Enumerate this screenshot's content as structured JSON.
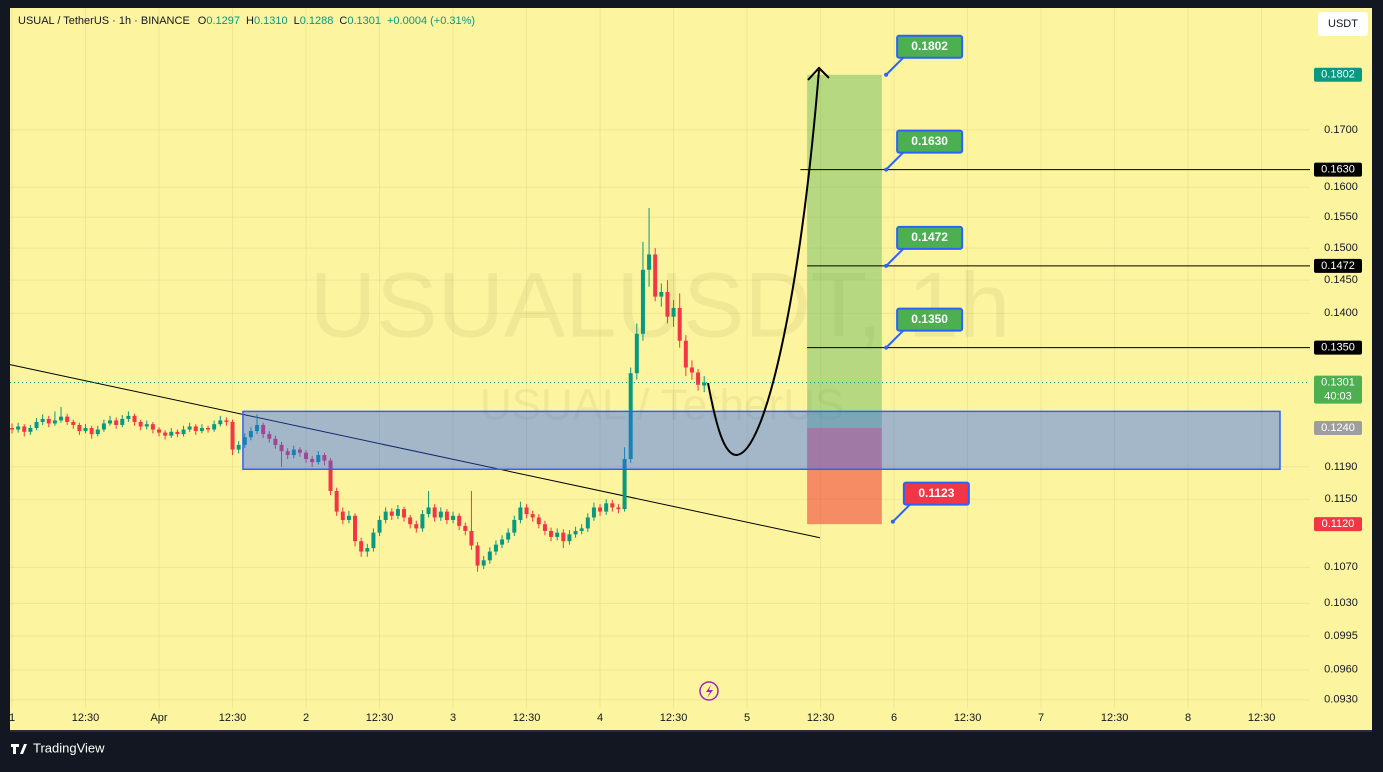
{
  "chart_data": {
    "type": "candlestick",
    "title": "USUAL / TetherUS · 1h · BINANCE",
    "ohlc_header": [
      {
        "key": "O",
        "text": "0.1297"
      },
      {
        "key": "H",
        "text": "0.1310"
      },
      {
        "key": "L",
        "text": "0.1288"
      },
      {
        "key": "C",
        "text": "0.1301"
      }
    ],
    "change": "+0.0004 (+0.31%)",
    "currency": "USDT",
    "watermark": [
      "USUALUSDT, 1h",
      "USUAL / TetherUS"
    ],
    "brand": "TradingView",
    "log_scale": true,
    "grid": true,
    "up_color": "#089981",
    "down_color": "#f23645",
    "ylim": [
      0.1934,
      0.0922
    ],
    "xlim": [
      -0.33,
      211.9
    ],
    "yticks": [
      {
        "value": 0.17,
        "label": "0.1700"
      },
      {
        "value": 0.16,
        "label": "0.1600"
      },
      {
        "value": 0.155,
        "label": "0.1550"
      },
      {
        "value": 0.15,
        "label": "0.1500"
      },
      {
        "value": 0.145,
        "label": "0.1450"
      },
      {
        "value": 0.14,
        "label": "0.1400"
      },
      {
        "value": 0.119,
        "label": "0.1190"
      },
      {
        "value": 0.115,
        "label": "0.1150"
      },
      {
        "value": 0.107,
        "label": "0.1070"
      },
      {
        "value": 0.103,
        "label": "0.1030"
      },
      {
        "value": 0.0995,
        "label": "0.0995"
      },
      {
        "value": 0.096,
        "label": "0.0960"
      },
      {
        "value": 0.093,
        "label": "0.0930"
      }
    ],
    "xticks": [
      {
        "value": 0,
        "label": "1"
      },
      {
        "value": 12,
        "label": "12:30"
      },
      {
        "value": 24,
        "label": "Apr"
      },
      {
        "value": 36,
        "label": "12:30"
      },
      {
        "value": 48,
        "label": "2"
      },
      {
        "value": 60,
        "label": "12:30"
      },
      {
        "value": 72,
        "label": "3"
      },
      {
        "value": 84,
        "label": "12:30"
      },
      {
        "value": 96,
        "label": "4"
      },
      {
        "value": 108,
        "label": "12:30"
      },
      {
        "value": 120,
        "label": "5"
      },
      {
        "value": 132,
        "label": "12:30"
      },
      {
        "value": 144,
        "label": "6"
      },
      {
        "value": 156,
        "label": "12:30"
      },
      {
        "value": 168,
        "label": "7"
      },
      {
        "value": 180,
        "label": "12:30"
      },
      {
        "value": 192,
        "label": "8"
      },
      {
        "value": 204,
        "label": "12:30"
      }
    ],
    "x": [
      0,
      1,
      2,
      3,
      4,
      5,
      6,
      7,
      8,
      9,
      10,
      11,
      12,
      13,
      14,
      15,
      16,
      17,
      18,
      19,
      20,
      21,
      22,
      23,
      24,
      25,
      26,
      27,
      28,
      29,
      30,
      31,
      32,
      33,
      34,
      35,
      36,
      37,
      38,
      39,
      40,
      41,
      42,
      43,
      44,
      45,
      46,
      47,
      48,
      49,
      50,
      51,
      52,
      53,
      54,
      55,
      56,
      57,
      58,
      59,
      60,
      61,
      62,
      63,
      64,
      65,
      66,
      67,
      68,
      69,
      70,
      71,
      72,
      73,
      74,
      75,
      76,
      77,
      78,
      79,
      80,
      81,
      82,
      83,
      84,
      85,
      86,
      87,
      88,
      89,
      90,
      91,
      92,
      93,
      94,
      95,
      96,
      97,
      98,
      99,
      100,
      101,
      102,
      103,
      104,
      105,
      106,
      107,
      108,
      109,
      110,
      111,
      112,
      113
    ],
    "ohlc": [
      [
        0.124,
        0.1246,
        0.1233,
        0.1238
      ],
      [
        0.1238,
        0.1247,
        0.1234,
        0.1242
      ],
      [
        0.1242,
        0.1245,
        0.1229,
        0.1235
      ],
      [
        0.1235,
        0.1244,
        0.1231,
        0.124
      ],
      [
        0.124,
        0.1253,
        0.1237,
        0.1248
      ],
      [
        0.1248,
        0.1258,
        0.1244,
        0.1252
      ],
      [
        0.1252,
        0.1256,
        0.1241,
        0.1246
      ],
      [
        0.1246,
        0.1262,
        0.1243,
        0.125
      ],
      [
        0.125,
        0.1268,
        0.1247,
        0.1255
      ],
      [
        0.1255,
        0.1259,
        0.1244,
        0.1248
      ],
      [
        0.1248,
        0.1251,
        0.1239,
        0.1244
      ],
      [
        0.1244,
        0.1247,
        0.1231,
        0.1236
      ],
      [
        0.1236,
        0.1245,
        0.1233,
        0.124
      ],
      [
        0.124,
        0.1243,
        0.1226,
        0.1232
      ],
      [
        0.1232,
        0.1243,
        0.1229,
        0.1238
      ],
      [
        0.1238,
        0.1251,
        0.1235,
        0.1246
      ],
      [
        0.1246,
        0.1256,
        0.1243,
        0.125
      ],
      [
        0.125,
        0.1254,
        0.1239,
        0.1244
      ],
      [
        0.1244,
        0.1257,
        0.1241,
        0.1252
      ],
      [
        0.1252,
        0.1262,
        0.1248,
        0.1256
      ],
      [
        0.1256,
        0.1259,
        0.1243,
        0.1248
      ],
      [
        0.1248,
        0.1251,
        0.1237,
        0.1242
      ],
      [
        0.1242,
        0.125,
        0.1238,
        0.1245
      ],
      [
        0.1245,
        0.1248,
        0.1233,
        0.1238
      ],
      [
        0.1238,
        0.1241,
        0.1229,
        0.1234
      ],
      [
        0.1234,
        0.1237,
        0.1225,
        0.123
      ],
      [
        0.123,
        0.124,
        0.1227,
        0.1235
      ],
      [
        0.1235,
        0.1238,
        0.1228,
        0.1232
      ],
      [
        0.1232,
        0.1243,
        0.1229,
        0.1238
      ],
      [
        0.1238,
        0.1247,
        0.1235,
        0.1242
      ],
      [
        0.1242,
        0.1245,
        0.1231,
        0.1236
      ],
      [
        0.1236,
        0.1245,
        0.1233,
        0.124
      ],
      [
        0.124,
        0.1243,
        0.1234,
        0.1238
      ],
      [
        0.1238,
        0.125,
        0.1235,
        0.1245
      ],
      [
        0.1245,
        0.1256,
        0.1242,
        0.125
      ],
      [
        0.125,
        0.1254,
        0.1243,
        0.1248
      ],
      [
        0.1248,
        0.1251,
        0.1205,
        0.1212
      ],
      [
        0.1212,
        0.1223,
        0.1207,
        0.1218
      ],
      [
        0.1218,
        0.1233,
        0.1214,
        0.1228
      ],
      [
        0.1228,
        0.1241,
        0.1224,
        0.1236
      ],
      [
        0.1236,
        0.1258,
        0.1232,
        0.1244
      ],
      [
        0.1244,
        0.1247,
        0.1227,
        0.1232
      ],
      [
        0.1232,
        0.1236,
        0.1221,
        0.1226
      ],
      [
        0.1226,
        0.123,
        0.1213,
        0.1218
      ],
      [
        0.1218,
        0.1222,
        0.119,
        0.121
      ],
      [
        0.121,
        0.1214,
        0.12,
        0.1205
      ],
      [
        0.1205,
        0.1217,
        0.1201,
        0.1212
      ],
      [
        0.1212,
        0.1215,
        0.1203,
        0.1208
      ],
      [
        0.1208,
        0.1211,
        0.1195,
        0.12
      ],
      [
        0.12,
        0.1204,
        0.119,
        0.1196
      ],
      [
        0.1196,
        0.121,
        0.1193,
        0.1205
      ],
      [
        0.1205,
        0.1208,
        0.1192,
        0.1198
      ],
      [
        0.1198,
        0.1201,
        0.1155,
        0.116
      ],
      [
        0.116,
        0.1164,
        0.113,
        0.1135
      ],
      [
        0.1135,
        0.114,
        0.112,
        0.1125
      ],
      [
        0.1125,
        0.1136,
        0.1121,
        0.113
      ],
      [
        0.113,
        0.1133,
        0.1094,
        0.11
      ],
      [
        0.11,
        0.1104,
        0.1082,
        0.1088
      ],
      [
        0.1088,
        0.1097,
        0.1082,
        0.1092
      ],
      [
        0.1092,
        0.1115,
        0.1088,
        0.111
      ],
      [
        0.111,
        0.113,
        0.1106,
        0.1125
      ],
      [
        0.1125,
        0.114,
        0.1121,
        0.1135
      ],
      [
        0.1135,
        0.1139,
        0.1125,
        0.113
      ],
      [
        0.113,
        0.1143,
        0.1126,
        0.1138
      ],
      [
        0.1138,
        0.1141,
        0.1123,
        0.1128
      ],
      [
        0.1128,
        0.1131,
        0.1115,
        0.112
      ],
      [
        0.112,
        0.1124,
        0.111,
        0.1115
      ],
      [
        0.1115,
        0.1137,
        0.1111,
        0.1132
      ],
      [
        0.1132,
        0.116,
        0.1128,
        0.114
      ],
      [
        0.114,
        0.1144,
        0.1123,
        0.1128
      ],
      [
        0.1128,
        0.114,
        0.1124,
        0.1135
      ],
      [
        0.1135,
        0.1138,
        0.112,
        0.1125
      ],
      [
        0.1125,
        0.1135,
        0.1121,
        0.113
      ],
      [
        0.113,
        0.1133,
        0.1113,
        0.1118
      ],
      [
        0.1118,
        0.1122,
        0.1107,
        0.1112
      ],
      [
        0.1112,
        0.116,
        0.109,
        0.1095
      ],
      [
        0.1095,
        0.1099,
        0.1065,
        0.1072
      ],
      [
        0.1072,
        0.1083,
        0.1068,
        0.1078
      ],
      [
        0.1078,
        0.1093,
        0.1074,
        0.1088
      ],
      [
        0.1088,
        0.1101,
        0.1084,
        0.1096
      ],
      [
        0.1096,
        0.1107,
        0.1092,
        0.1102
      ],
      [
        0.1102,
        0.1115,
        0.1098,
        0.111
      ],
      [
        0.111,
        0.113,
        0.1106,
        0.1125
      ],
      [
        0.1125,
        0.1147,
        0.1121,
        0.114
      ],
      [
        0.114,
        0.1144,
        0.1127,
        0.1132
      ],
      [
        0.1132,
        0.1136,
        0.1123,
        0.1128
      ],
      [
        0.1128,
        0.1132,
        0.1115,
        0.112
      ],
      [
        0.112,
        0.1124,
        0.1107,
        0.1112
      ],
      [
        0.1112,
        0.1116,
        0.11,
        0.1105
      ],
      [
        0.1105,
        0.1115,
        0.1101,
        0.111
      ],
      [
        0.111,
        0.1114,
        0.1092,
        0.11
      ],
      [
        0.11,
        0.1113,
        0.1096,
        0.1108
      ],
      [
        0.1108,
        0.1117,
        0.1104,
        0.1112
      ],
      [
        0.1112,
        0.112,
        0.1108,
        0.1115
      ],
      [
        0.1115,
        0.1133,
        0.1111,
        0.1128
      ],
      [
        0.1128,
        0.1146,
        0.1124,
        0.114
      ],
      [
        0.114,
        0.1144,
        0.113,
        0.1135
      ],
      [
        0.1135,
        0.115,
        0.1131,
        0.1145
      ],
      [
        0.1145,
        0.1149,
        0.1135,
        0.114
      ],
      [
        0.114,
        0.1144,
        0.1133,
        0.1138
      ],
      [
        0.1138,
        0.1215,
        0.1135,
        0.12
      ],
      [
        0.12,
        0.1322,
        0.1195,
        0.1314
      ],
      [
        0.1314,
        0.1385,
        0.1305,
        0.137
      ],
      [
        0.137,
        0.151,
        0.136,
        0.1466
      ],
      [
        0.1466,
        0.1565,
        0.144,
        0.149
      ],
      [
        0.149,
        0.15,
        0.1418,
        0.1425
      ],
      [
        0.1425,
        0.1445,
        0.141,
        0.1432
      ],
      [
        0.1432,
        0.145,
        0.1385,
        0.1395
      ],
      [
        0.1395,
        0.142,
        0.138,
        0.1408
      ],
      [
        0.1408,
        0.143,
        0.135,
        0.136
      ],
      [
        0.136,
        0.1368,
        0.131,
        0.1322
      ],
      [
        0.1322,
        0.1332,
        0.1305,
        0.1315
      ],
      [
        0.1315,
        0.132,
        0.129,
        0.1298
      ],
      [
        0.1297,
        0.131,
        0.1288,
        0.1301
      ]
    ],
    "price_tags": [
      {
        "value": 0.1802,
        "label": "0.1802",
        "color": "#089981"
      },
      {
        "value": 0.163,
        "label": "0.1630",
        "color": "#000000"
      },
      {
        "value": 0.1472,
        "label": "0.1472",
        "color": "#000000"
      },
      {
        "value": 0.135,
        "label": "0.1350",
        "color": "#000000"
      },
      {
        "value": 0.1301,
        "label": "0.1301",
        "color": "#4caf50",
        "countdown": "40:03"
      },
      {
        "value": 0.124,
        "label": "0.1240",
        "color": "#9e9e9e"
      },
      {
        "value": 0.112,
        "label": "0.1120",
        "color": "#f23645"
      }
    ],
    "horizontal_lines": [
      {
        "value": 0.163,
        "x_start": 128.7
      },
      {
        "value": 0.1472,
        "x_start": 129.8
      },
      {
        "value": 0.135,
        "x_start": 129.8
      }
    ],
    "position": {
      "entry": 0.124,
      "target": 0.1802,
      "stop": 0.112,
      "x": [
        129.8,
        142
      ]
    },
    "zone": {
      "ylim": [
        0.1187,
        0.1262
      ],
      "x": [
        37.7,
        207
      ]
    },
    "trendline": {
      "x": [
        -0.33,
        131.9
      ],
      "y": [
        0.1326,
        0.1104
      ]
    },
    "callouts": [
      {
        "value": 0.1802,
        "label": "0.1802",
        "x": 142.7,
        "color": "#4caf50"
      },
      {
        "value": 0.163,
        "label": "0.1630",
        "x": 142.7,
        "color": "#4caf50"
      },
      {
        "value": 0.1472,
        "label": "0.1472",
        "x": 142.7,
        "color": "#4caf50"
      },
      {
        "value": 0.135,
        "label": "0.1350",
        "x": 142.7,
        "color": "#4caf50"
      },
      {
        "value": 0.1123,
        "label": "0.1123",
        "x": 143.8,
        "color": "#f23645"
      }
    ]
  }
}
